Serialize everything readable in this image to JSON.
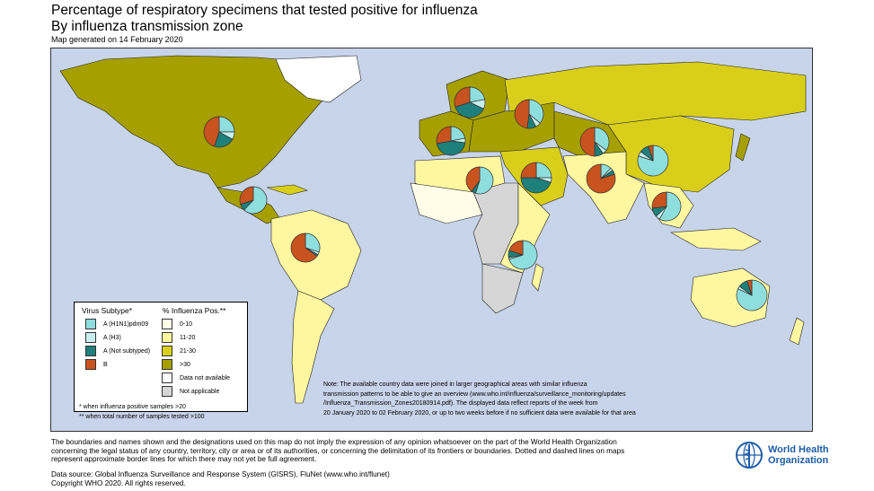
{
  "title": "Percentage of respiratory specimens that tested positive for influenza",
  "subtitle": "By influenza transmission zone",
  "generated": "Map generated on 14 February 2020",
  "colors": {
    "ocean": "#c8d4ea",
    "h1n1": "#8fdede",
    "h3": "#c8efef",
    "not_subtyped": "#1f7f7a",
    "b": "#c8531e",
    "pos_0_10": "#fffde8",
    "pos_11_20": "#fef7a0",
    "pos_21_30": "#d9cf1a",
    "pos_gt30": "#a69f00",
    "na": "#ffffff",
    "not_applicable": "#d6d6d6"
  },
  "legend": {
    "virus_title": "Virus Subtype*",
    "virus_items": [
      "A (H1N1)pdm09",
      "A (H3)",
      "A (Not subtyped)",
      "B"
    ],
    "pos_title": "% Influenza Pos.**",
    "pos_items": [
      "0-10",
      "11-20",
      "21-30",
      ">30",
      "Data not available",
      "Not applicable"
    ],
    "footnote1": "* when influenza positive samples >20",
    "footnote2": "** when total number of samples tested >100"
  },
  "note_lines": [
    "Note: The available country data were joined in larger geographical areas with similar influenza",
    "transmission patterns to be able to give an overview (www.who.int/influenza/surveillance_monitoring/updates",
    "/Influenza_Transmission_Zones20180914.pdf). The displayed data reflect reports of the week from",
    "20 January 2020 to 02 February 2020, or up to two weeks before if no sufficient data were available for that area"
  ],
  "disclaimer_lines": [
    "The boundaries and names shown and the designations used on this map do not imply the expression of any opinion whatsoever on the part of the World Health Organization",
    "concerning the legal status of any country, territory, city or area or of its authorities, or concerning the delimitation of its frontiers or boundaries. Dotted and dashed lines on maps",
    "represent approximate border lines for which there may not yet be full agreement."
  ],
  "source_lines": [
    "Data source: Global Influenza Surveillance and Response System (GISRS), FluNet (www.who.int/flunet)",
    "Copyright WHO 2020. All rights reserved."
  ],
  "who_logo_lines": [
    "World Health",
    "Organization"
  ],
  "pies": [
    {
      "zone": "North America",
      "h1n1": 0.25,
      "h3": 0.08,
      "not_subtyped": 0.22,
      "b": 0.45
    },
    {
      "zone": "Central America and Caribbean",
      "h1n1": 0.62,
      "h3": 0.0,
      "not_subtyped": 0.08,
      "b": 0.3
    },
    {
      "zone": "Tropical South America",
      "h1n1": 0.3,
      "h3": 0.03,
      "not_subtyped": 0.02,
      "b": 0.65
    },
    {
      "zone": "Northern Europe",
      "h1n1": 0.22,
      "h3": 0.1,
      "not_subtyped": 0.38,
      "b": 0.3
    },
    {
      "zone": "South West Europe",
      "h1n1": 0.22,
      "h3": 0.05,
      "not_subtyped": 0.45,
      "b": 0.28
    },
    {
      "zone": "Eastern Europe",
      "h1n1": 0.36,
      "h3": 0.06,
      "not_subtyped": 0.1,
      "b": 0.48
    },
    {
      "zone": "Central Asia",
      "h1n1": 0.35,
      "h3": 0.05,
      "not_subtyped": 0.1,
      "b": 0.5
    },
    {
      "zone": "Northern Africa",
      "h1n1": 0.55,
      "h3": 0.0,
      "not_subtyped": 0.05,
      "b": 0.4
    },
    {
      "zone": "Western Asia",
      "h1n1": 0.25,
      "h3": 0.05,
      "not_subtyped": 0.45,
      "b": 0.25
    },
    {
      "zone": "Southern Asia",
      "h1n1": 0.12,
      "h3": 0.03,
      "not_subtyped": 0.05,
      "b": 0.8
    },
    {
      "zone": "Eastern Asia",
      "h1n1": 0.8,
      "h3": 0.05,
      "not_subtyped": 0.1,
      "b": 0.05
    },
    {
      "zone": "South East Asia",
      "h1n1": 0.58,
      "h3": 0.05,
      "not_subtyped": 0.1,
      "b": 0.27
    },
    {
      "zone": "Eastern Africa",
      "h1n1": 0.7,
      "h3": 0.02,
      "not_subtyped": 0.08,
      "b": 0.2
    },
    {
      "zone": "Oceania",
      "h1n1": 0.82,
      "h3": 0.03,
      "not_subtyped": 0.1,
      "b": 0.05
    }
  ]
}
